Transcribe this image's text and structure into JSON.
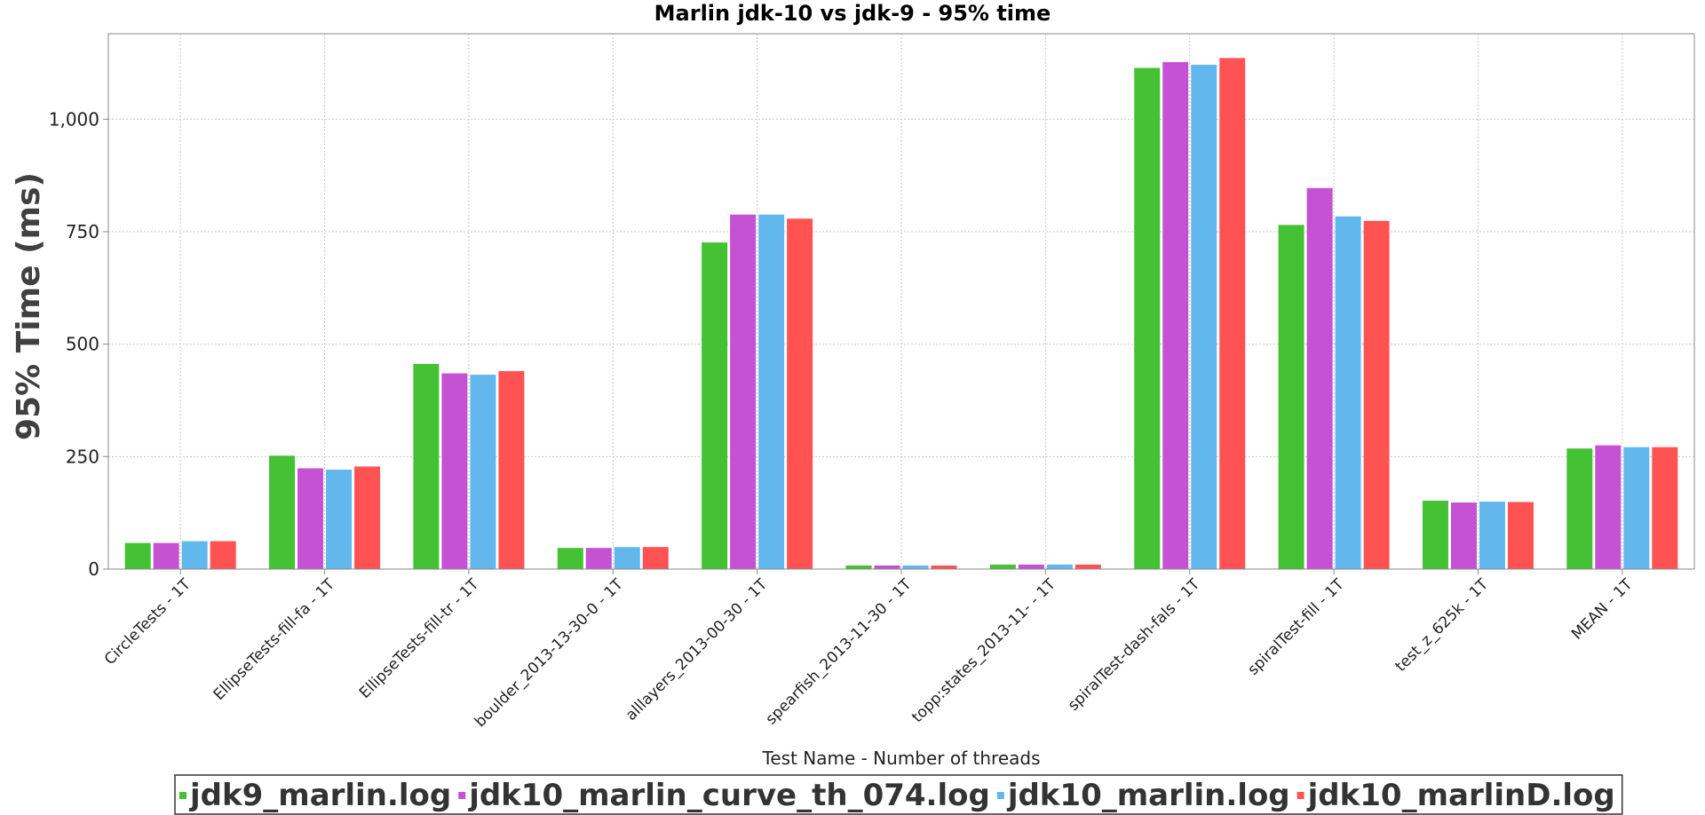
{
  "chart_data": {
    "type": "bar",
    "title": "Marlin jdk-10 vs jdk-9 - 95% time",
    "xlabel": "Test Name - Number of threads",
    "ylabel": "95% Time (ms)",
    "ylim": [
      0,
      1190
    ],
    "yticks": [
      0,
      250,
      500,
      750,
      1000
    ],
    "ytick_labels": [
      "0",
      "250",
      "500",
      "750",
      "1,000"
    ],
    "grid": true,
    "legend_position": "bottom",
    "categories": [
      "CircleTests - 1T",
      "EllipseTests-fill-fa - 1T",
      "EllipseTests-fill-tr - 1T",
      "boulder_2013-13-30-0 - 1T",
      "alllayers_2013-00-30 - 1T",
      "spearfish_2013-11-30 - 1T",
      "topp:states_2013-11- - 1T",
      "spiralTest-dash-fals - 1T",
      "spiralTest-fill - 1T",
      "test_z_625k - 1T",
      "MEAN - 1T"
    ],
    "series": [
      {
        "name": "jdk9_marlin.log",
        "color": "#44c233",
        "values": [
          58,
          252,
          456,
          47,
          726,
          8,
          10,
          1114,
          765,
          152,
          268
        ]
      },
      {
        "name": "jdk10_marlin_curve_th_074.log",
        "color": "#c452d2",
        "values": [
          58,
          224,
          435,
          47,
          788,
          8,
          10,
          1127,
          847,
          148,
          275
        ]
      },
      {
        "name": "jdk10_marlin.log",
        "color": "#62b8ed",
        "values": [
          62,
          221,
          432,
          49,
          788,
          8,
          10,
          1121,
          784,
          150,
          271
        ]
      },
      {
        "name": "jdk10_marlinD.log",
        "color": "#ff5353",
        "values": [
          62,
          228,
          440,
          49,
          779,
          8,
          10,
          1136,
          774,
          149,
          271
        ]
      }
    ]
  }
}
